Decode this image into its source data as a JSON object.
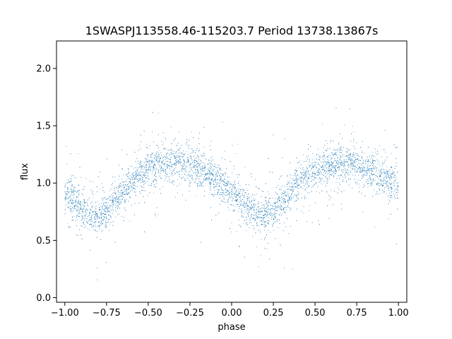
{
  "chart_data": {
    "type": "scatter",
    "title": "1SWASPJ113558.46-115203.7 Period 13738.13867s",
    "xlabel": "phase",
    "ylabel": "flux",
    "xlim": [
      -1.05,
      1.05
    ],
    "ylim": [
      -0.04,
      2.24
    ],
    "xticks": [
      -1.0,
      -0.75,
      -0.5,
      -0.25,
      0.0,
      0.25,
      0.5,
      0.75,
      1.0
    ],
    "xtick_labels": [
      "−1.00",
      "−0.75",
      "−0.50",
      "−0.25",
      "0.00",
      "0.25",
      "0.50",
      "0.75",
      "1.00"
    ],
    "yticks": [
      0.0,
      0.5,
      1.0,
      1.5,
      2.0
    ],
    "ytick_labels": [
      "0.0",
      "0.5",
      "1.0",
      "1.5",
      "2.0"
    ],
    "grid": false,
    "legend": "none",
    "marker_color": "#1f77b4",
    "series": [
      {
        "x": [
          -1.0,
          -0.95,
          -0.9,
          -0.85,
          -0.8,
          -0.75,
          -0.7,
          -0.65,
          -0.6,
          -0.55,
          -0.5,
          -0.45,
          -0.4,
          -0.35,
          -0.3,
          -0.25,
          -0.2,
          -0.15,
          -0.1,
          -0.05,
          0.0,
          0.05,
          0.1,
          0.15,
          0.2,
          0.25,
          0.3,
          0.35,
          0.4,
          0.45,
          0.5,
          0.55,
          0.6,
          0.65,
          0.7,
          0.75,
          0.8,
          0.85,
          0.9,
          0.95,
          1.0
        ],
        "y": [
          0.92,
          0.84,
          0.77,
          0.73,
          0.72,
          0.76,
          0.84,
          0.93,
          1.01,
          1.07,
          1.12,
          1.15,
          1.17,
          1.18,
          1.17,
          1.15,
          1.12,
          1.08,
          1.03,
          0.98,
          0.93,
          0.86,
          0.78,
          0.73,
          0.72,
          0.76,
          0.84,
          0.92,
          1.0,
          1.06,
          1.11,
          1.14,
          1.16,
          1.18,
          1.18,
          1.16,
          1.13,
          1.1,
          1.06,
          1.01,
          0.96
        ]
      }
    ]
  }
}
